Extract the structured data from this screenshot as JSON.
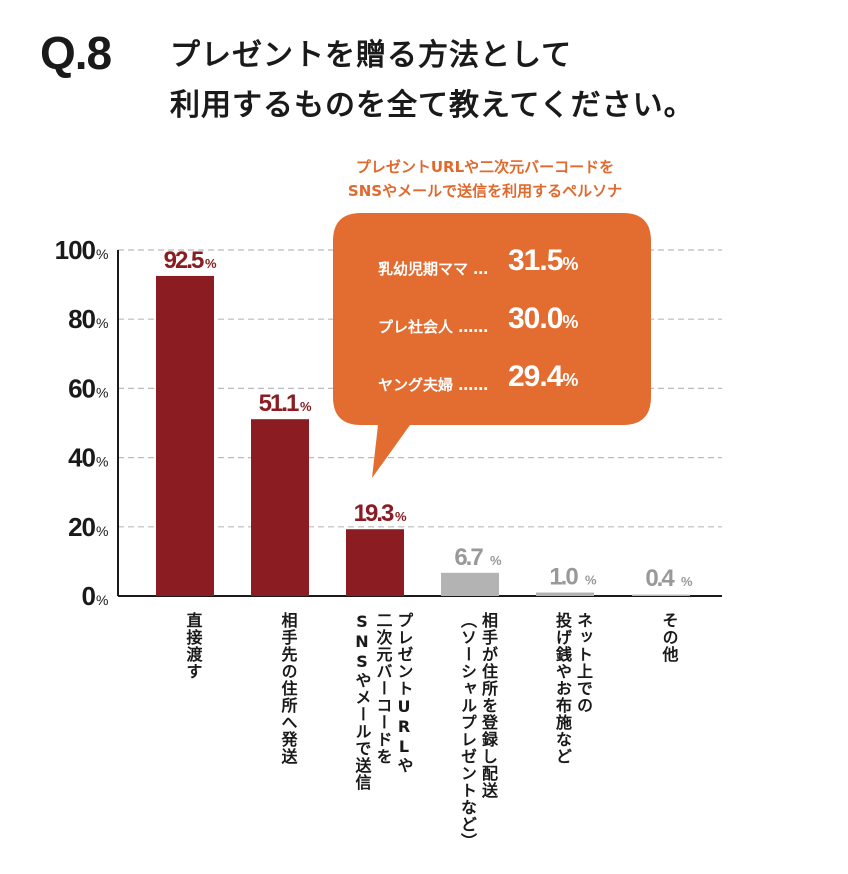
{
  "header": {
    "qnum": "Q.8",
    "line1": "プレゼントを贈る方法として",
    "line2": "利用するものを全て教えてください。"
  },
  "callout": {
    "note_line1": "プレゼントURLや二次元バーコードを",
    "note_line2": "SNSやメールで送信を利用するペルソナ",
    "rows": [
      {
        "label": "乳幼児期ママ",
        "dots": "…",
        "value": "31.5",
        "unit": "%"
      },
      {
        "label": "プレ社会人",
        "dots": "……",
        "value": "30.0",
        "unit": "%"
      },
      {
        "label": "ヤング夫婦",
        "dots": "……",
        "value": "29.4",
        "unit": "%"
      }
    ]
  },
  "colors": {
    "bar_main": "#8a1c22",
    "bar_minor": "#b3b3b3",
    "callout": "#e36c30",
    "grid": "#bbbbbb"
  },
  "chart_data": {
    "type": "bar",
    "title": "プレゼントを贈る方法として利用するものを全て教えてください。",
    "ylim": [
      0,
      100
    ],
    "yticks": [
      0,
      20,
      40,
      60,
      80,
      100
    ],
    "ytick_labels": [
      "0",
      "20",
      "40",
      "60",
      "80",
      "100"
    ],
    "ytick_unit": "%",
    "grid": true,
    "categories": [
      "直接渡す",
      "相手先の住所へ発送",
      "プレゼントURLや二次元バーコードをSNSやメールで送信",
      "相手が住所を登録し配送（ソーシャルプレゼントなど）",
      "ネット上での投げ銭やお布施など",
      "その他"
    ],
    "category_label_columns": [
      [
        "直接渡す"
      ],
      [
        "相手先の住所へ発送"
      ],
      [
        "プレゼントURLや",
        "二次元バーコードを",
        "SNSやメールで送信"
      ],
      [
        "相手が住所を登録し配送",
        "（ソーシャルプレゼントなど）"
      ],
      [
        "ネット上での",
        "投げ銭やお布施など"
      ],
      [
        "その他"
      ]
    ],
    "values": [
      92.5,
      51.1,
      19.3,
      6.7,
      1.0,
      0.4
    ],
    "value_labels": [
      "92.5",
      "51.1",
      "19.3",
      "6.7",
      "1.0",
      "0.4"
    ],
    "value_unit": "%",
    "highlight": [
      true,
      true,
      true,
      false,
      false,
      false
    ]
  }
}
